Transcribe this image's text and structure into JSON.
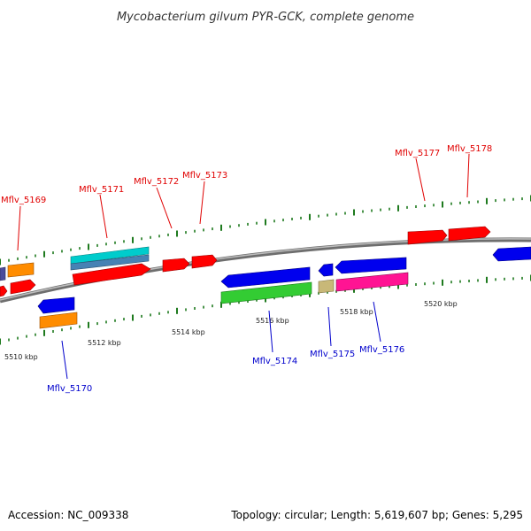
{
  "title": "Mycobacterium gilvum PYR-GCK, complete genome",
  "footer": {
    "accession": "Accession: NC_009338",
    "summary": "Topology: circular; Length: 5,619,607 bp; Genes: 5,295"
  },
  "colors": {
    "backbone": "#8c8c8c",
    "tick": "#1e7a1e",
    "label_red": "#e00000",
    "label_blue": "#0000cc",
    "leader": "#000000"
  },
  "scale": {
    "unit": "kbp",
    "tick_labels": [
      {
        "value": 5510,
        "text": "5510 kbp"
      },
      {
        "value": 5512,
        "text": "5512 kbp"
      },
      {
        "value": 5514,
        "text": "5514 kbp"
      },
      {
        "value": 5516,
        "text": "5516 kbp"
      },
      {
        "value": 5518,
        "text": "5518 kbp"
      },
      {
        "value": 5520,
        "text": "5520 kbp"
      }
    ]
  },
  "gene_labels": {
    "top": [
      "Mflv_5169",
      "Mflv_5171",
      "Mflv_5172",
      "Mflv_5173",
      "Mflv_5177",
      "Mflv_5178"
    ],
    "bottom": [
      "Mflv_5170",
      "Mflv_5174",
      "Mflv_5175",
      "Mflv_5176"
    ]
  },
  "feature_colors": [
    "#ff0000",
    "#0000ee",
    "#ff8c00",
    "#00cccc",
    "#4682b4",
    "#33cc33",
    "#c8b878",
    "#ff1493",
    "#4b4b9b"
  ]
}
